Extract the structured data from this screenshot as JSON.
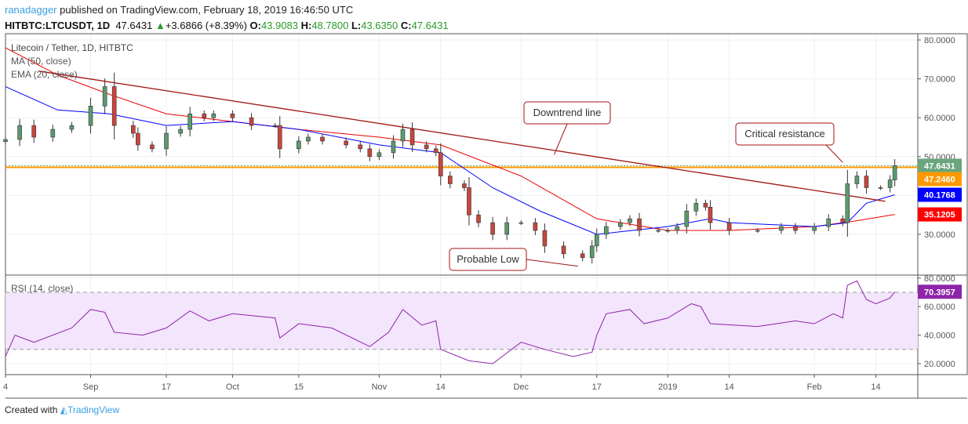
{
  "header": {
    "user": "ranadagger",
    "published": "published on TradingView.com, February 18, 2019 16:46:50 UTC",
    "symbol": "HITBTC:LTCUSDT, 1D",
    "last": "47.6431",
    "change": "+3.6866 (+8.39%)",
    "o_label": "O:",
    "o": "43.9083",
    "h_label": "H:",
    "h": "48.7800",
    "l_label": "L:",
    "l": "43.6350",
    "c_label": "C:",
    "c": "47.6431"
  },
  "footer": {
    "created": "Created with",
    "brand": "TradingView"
  },
  "chart_data": {
    "type": "candlestick",
    "title": "Litecoin / Tether, 1D, HITBTC",
    "indicators": [
      "MA (50, close)",
      "EMA (20, close)"
    ],
    "colors": {
      "up": "#5b9a6e",
      "down": "#c8463c",
      "ma": "#f00000",
      "ema": "#0000ff",
      "trend": "#a01414",
      "resistance": "#ff9900",
      "rsi": "#8e24aa"
    },
    "ylim": [
      20,
      82
    ],
    "yticks": [
      "80.0000",
      "70.0000",
      "60.0000",
      "50.0000",
      "30.0000"
    ],
    "ytick_values": [
      80,
      70,
      60,
      50,
      30
    ],
    "xticks": [
      [
        "2018-08-14",
        "4"
      ],
      [
        "2018-09-01",
        "Sep"
      ],
      [
        "2018-09-17",
        "17"
      ],
      [
        "2018-10-01",
        "Oct"
      ],
      [
        "2018-10-15",
        "15"
      ],
      [
        "2018-11-01",
        "Nov"
      ],
      [
        "2018-11-14",
        "14"
      ],
      [
        "2018-12-01",
        "Dec"
      ],
      [
        "2018-12-17",
        "17"
      ],
      [
        "2019-01-01",
        "2019"
      ],
      [
        "2019-01-14",
        "14"
      ],
      [
        "2019-02-01",
        "Feb"
      ],
      [
        "2019-02-14",
        "14"
      ]
    ],
    "closes": [
      [
        "2018-08-14",
        54.4
      ],
      [
        "2018-08-17",
        58
      ],
      [
        "2018-08-20",
        55
      ],
      [
        "2018-08-24",
        57
      ],
      [
        "2018-08-28",
        58
      ],
      [
        "2018-09-01",
        63
      ],
      [
        "2018-09-04",
        68
      ],
      [
        "2018-09-06",
        58
      ],
      [
        "2018-09-10",
        56
      ],
      [
        "2018-09-11",
        53
      ],
      [
        "2018-09-14",
        52
      ],
      [
        "2018-09-17",
        56
      ],
      [
        "2018-09-20",
        57
      ],
      [
        "2018-09-22",
        61
      ],
      [
        "2018-09-25",
        60
      ],
      [
        "2018-09-27",
        61
      ],
      [
        "2018-10-01",
        60
      ],
      [
        "2018-10-05",
        58
      ],
      [
        "2018-10-10",
        58
      ],
      [
        "2018-10-11",
        52
      ],
      [
        "2018-10-15",
        54
      ],
      [
        "2018-10-17",
        55
      ],
      [
        "2018-10-20",
        54
      ],
      [
        "2018-10-25",
        53
      ],
      [
        "2018-10-28",
        52
      ],
      [
        "2018-10-30",
        50
      ],
      [
        "2018-11-01",
        51
      ],
      [
        "2018-11-04",
        54
      ],
      [
        "2018-11-06",
        57
      ],
      [
        "2018-11-08",
        53
      ],
      [
        "2018-11-11",
        52
      ],
      [
        "2018-11-13",
        51
      ],
      [
        "2018-11-14",
        45
      ],
      [
        "2018-11-16",
        43
      ],
      [
        "2018-11-19",
        42
      ],
      [
        "2018-11-20",
        35
      ],
      [
        "2018-11-22",
        33
      ],
      [
        "2018-11-25",
        30
      ],
      [
        "2018-11-28",
        33
      ],
      [
        "2018-12-01",
        33
      ],
      [
        "2018-12-04",
        31
      ],
      [
        "2018-12-06",
        27
      ],
      [
        "2018-12-10",
        25
      ],
      [
        "2018-12-14",
        24
      ],
      [
        "2018-12-16",
        27
      ],
      [
        "2018-12-17",
        30
      ],
      [
        "2018-12-19",
        32
      ],
      [
        "2018-12-22",
        33
      ],
      [
        "2018-12-24",
        34
      ],
      [
        "2018-12-26",
        31
      ],
      [
        "2018-12-30",
        31
      ],
      [
        "2019-01-01",
        31
      ],
      [
        "2019-01-03",
        32
      ],
      [
        "2019-01-05",
        36
      ],
      [
        "2019-01-07",
        38
      ],
      [
        "2019-01-09",
        37
      ],
      [
        "2019-01-10",
        33
      ],
      [
        "2019-01-14",
        31
      ],
      [
        "2019-01-20",
        31
      ],
      [
        "2019-01-25",
        32
      ],
      [
        "2019-01-28",
        31
      ],
      [
        "2019-02-01",
        32
      ],
      [
        "2019-02-04",
        34
      ],
      [
        "2019-02-07",
        33
      ],
      [
        "2019-02-08",
        43
      ],
      [
        "2019-02-10",
        45
      ],
      [
        "2019-02-12",
        42
      ],
      [
        "2019-02-15",
        42
      ],
      [
        "2019-02-17",
        44
      ],
      [
        "2019-02-18",
        47.6431
      ]
    ],
    "ma50": [
      [
        "2018-08-14",
        78
      ],
      [
        "2018-08-25",
        71
      ],
      [
        "2018-09-05",
        66
      ],
      [
        "2018-09-17",
        61
      ],
      [
        "2018-10-01",
        59
      ],
      [
        "2018-10-15",
        57
      ],
      [
        "2018-11-01",
        55
      ],
      [
        "2018-11-14",
        53
      ],
      [
        "2018-12-01",
        45
      ],
      [
        "2018-12-17",
        34
      ],
      [
        "2019-01-01",
        31
      ],
      [
        "2019-01-14",
        31
      ],
      [
        "2019-02-01",
        32
      ],
      [
        "2019-02-10",
        33.5
      ],
      [
        "2019-02-18",
        35.1205
      ]
    ],
    "ema20": [
      [
        "2018-08-14",
        68
      ],
      [
        "2018-08-25",
        62
      ],
      [
        "2018-09-05",
        61
      ],
      [
        "2018-09-17",
        58
      ],
      [
        "2018-10-01",
        59
      ],
      [
        "2018-10-15",
        57
      ],
      [
        "2018-11-01",
        53
      ],
      [
        "2018-11-14",
        51
      ],
      [
        "2018-11-25",
        42
      ],
      [
        "2018-12-05",
        36
      ],
      [
        "2018-12-17",
        30
      ],
      [
        "2019-01-01",
        32
      ],
      [
        "2019-01-10",
        34
      ],
      [
        "2019-01-14",
        33
      ],
      [
        "2019-02-01",
        32
      ],
      [
        "2019-02-08",
        33
      ],
      [
        "2019-02-12",
        38
      ],
      [
        "2019-02-18",
        40.1768
      ]
    ],
    "trendline": [
      [
        "2018-08-21",
        72
      ],
      [
        "2019-02-16",
        38.5
      ]
    ],
    "resistance": 47.246,
    "price_labels": [
      {
        "text": "47.6431",
        "value": 47.6431,
        "color": "#6aa57e"
      },
      {
        "text": "47.2460",
        "value": 47.246,
        "color": "#ff9900"
      },
      {
        "text": "40.1768",
        "value": 40.1768,
        "color": "#0000ff"
      },
      {
        "text": "35.1205",
        "value": 35.1205,
        "color": "#ff0000"
      }
    ],
    "annotations": [
      {
        "text": "Downtrend line",
        "date": "2018-12-08",
        "value": 50.5
      },
      {
        "text": "Critical resistance",
        "date": "2019-02-07",
        "value": 48.5
      },
      {
        "text": "Probable Low",
        "date": "2018-12-13",
        "value": 21.8
      }
    ],
    "rsi": {
      "label": "RSI (14, close)",
      "last": "70.3957",
      "ylim": [
        15,
        82
      ],
      "yticks": [
        "80.0000",
        "60.0000",
        "40.0000",
        "20.0000"
      ],
      "ytick_values": [
        80,
        60,
        40,
        20
      ],
      "bands": [
        30,
        70
      ],
      "values": [
        [
          "2018-08-14",
          25
        ],
        [
          "2018-08-16",
          40
        ],
        [
          "2018-08-20",
          35
        ],
        [
          "2018-08-28",
          45
        ],
        [
          "2018-09-01",
          58
        ],
        [
          "2018-09-04",
          56
        ],
        [
          "2018-09-06",
          42
        ],
        [
          "2018-09-12",
          40
        ],
        [
          "2018-09-17",
          45
        ],
        [
          "2018-09-22",
          57
        ],
        [
          "2018-09-26",
          50
        ],
        [
          "2018-10-01",
          55
        ],
        [
          "2018-10-10",
          52
        ],
        [
          "2018-10-11",
          38
        ],
        [
          "2018-10-15",
          48
        ],
        [
          "2018-10-22",
          45
        ],
        [
          "2018-10-30",
          32
        ],
        [
          "2018-11-03",
          42
        ],
        [
          "2018-11-06",
          58
        ],
        [
          "2018-11-10",
          47
        ],
        [
          "2018-11-13",
          50
        ],
        [
          "2018-11-14",
          30
        ],
        [
          "2018-11-20",
          22
        ],
        [
          "2018-11-25",
          20
        ],
        [
          "2018-12-01",
          35
        ],
        [
          "2018-12-06",
          30
        ],
        [
          "2018-12-12",
          25
        ],
        [
          "2018-12-16",
          28
        ],
        [
          "2018-12-17",
          40
        ],
        [
          "2018-12-19",
          55
        ],
        [
          "2018-12-24",
          58
        ],
        [
          "2018-12-27",
          48
        ],
        [
          "2019-01-01",
          52
        ],
        [
          "2019-01-06",
          62
        ],
        [
          "2019-01-08",
          60
        ],
        [
          "2019-01-10",
          48
        ],
        [
          "2019-01-20",
          46
        ],
        [
          "2019-01-28",
          50
        ],
        [
          "2019-02-01",
          48
        ],
        [
          "2019-02-05",
          55
        ],
        [
          "2019-02-07",
          52
        ],
        [
          "2019-02-08",
          75
        ],
        [
          "2019-02-10",
          78
        ],
        [
          "2019-02-12",
          65
        ],
        [
          "2019-02-14",
          62
        ],
        [
          "2019-02-17",
          66
        ],
        [
          "2019-02-18",
          70.3957
        ]
      ]
    }
  }
}
